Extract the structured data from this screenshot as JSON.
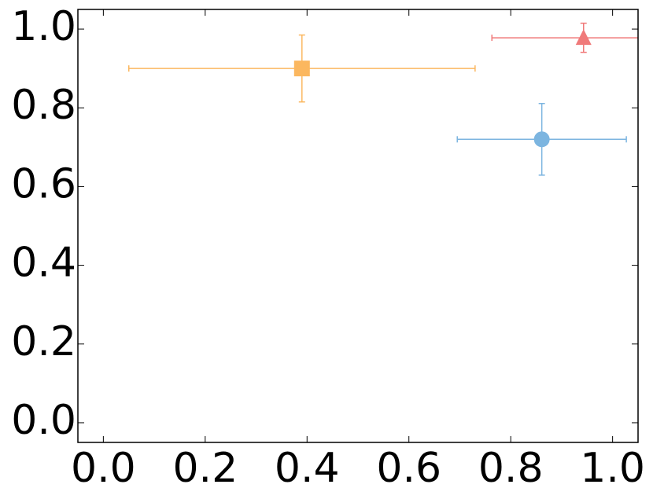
{
  "chart_data": {
    "type": "scatter",
    "xlim": [
      -0.05,
      1.05
    ],
    "ylim": [
      -0.05,
      1.05
    ],
    "xticks": [
      {
        "value": 0,
        "label": "0.0"
      },
      0.2,
      0.4,
      0.6,
      0.8,
      {
        "value": 1,
        "label": "1.0"
      }
    ],
    "yticks": [
      {
        "value": 0,
        "label": "0.0"
      },
      0.2,
      0.4,
      0.6,
      0.8,
      {
        "value": 1,
        "label": "1.0"
      }
    ],
    "grid": false,
    "series": [
      {
        "marker": "square",
        "color": "#fbb75f",
        "x": [
          0.39
        ],
        "y": [
          0.9
        ],
        "xerr": [
          0.34
        ],
        "yerr": [
          0.085
        ]
      },
      {
        "marker": "triangle",
        "color": "#f07a7a",
        "x": [
          0.943
        ],
        "y": [
          0.978
        ],
        "xerr": [
          0.18
        ],
        "yerr": [
          0.037
        ]
      },
      {
        "marker": "circle",
        "color": "#7cb5e0",
        "x": [
          0.861
        ],
        "y": [
          0.72
        ],
        "xerr": [
          0.166
        ],
        "yerr": [
          0.091
        ]
      }
    ]
  }
}
